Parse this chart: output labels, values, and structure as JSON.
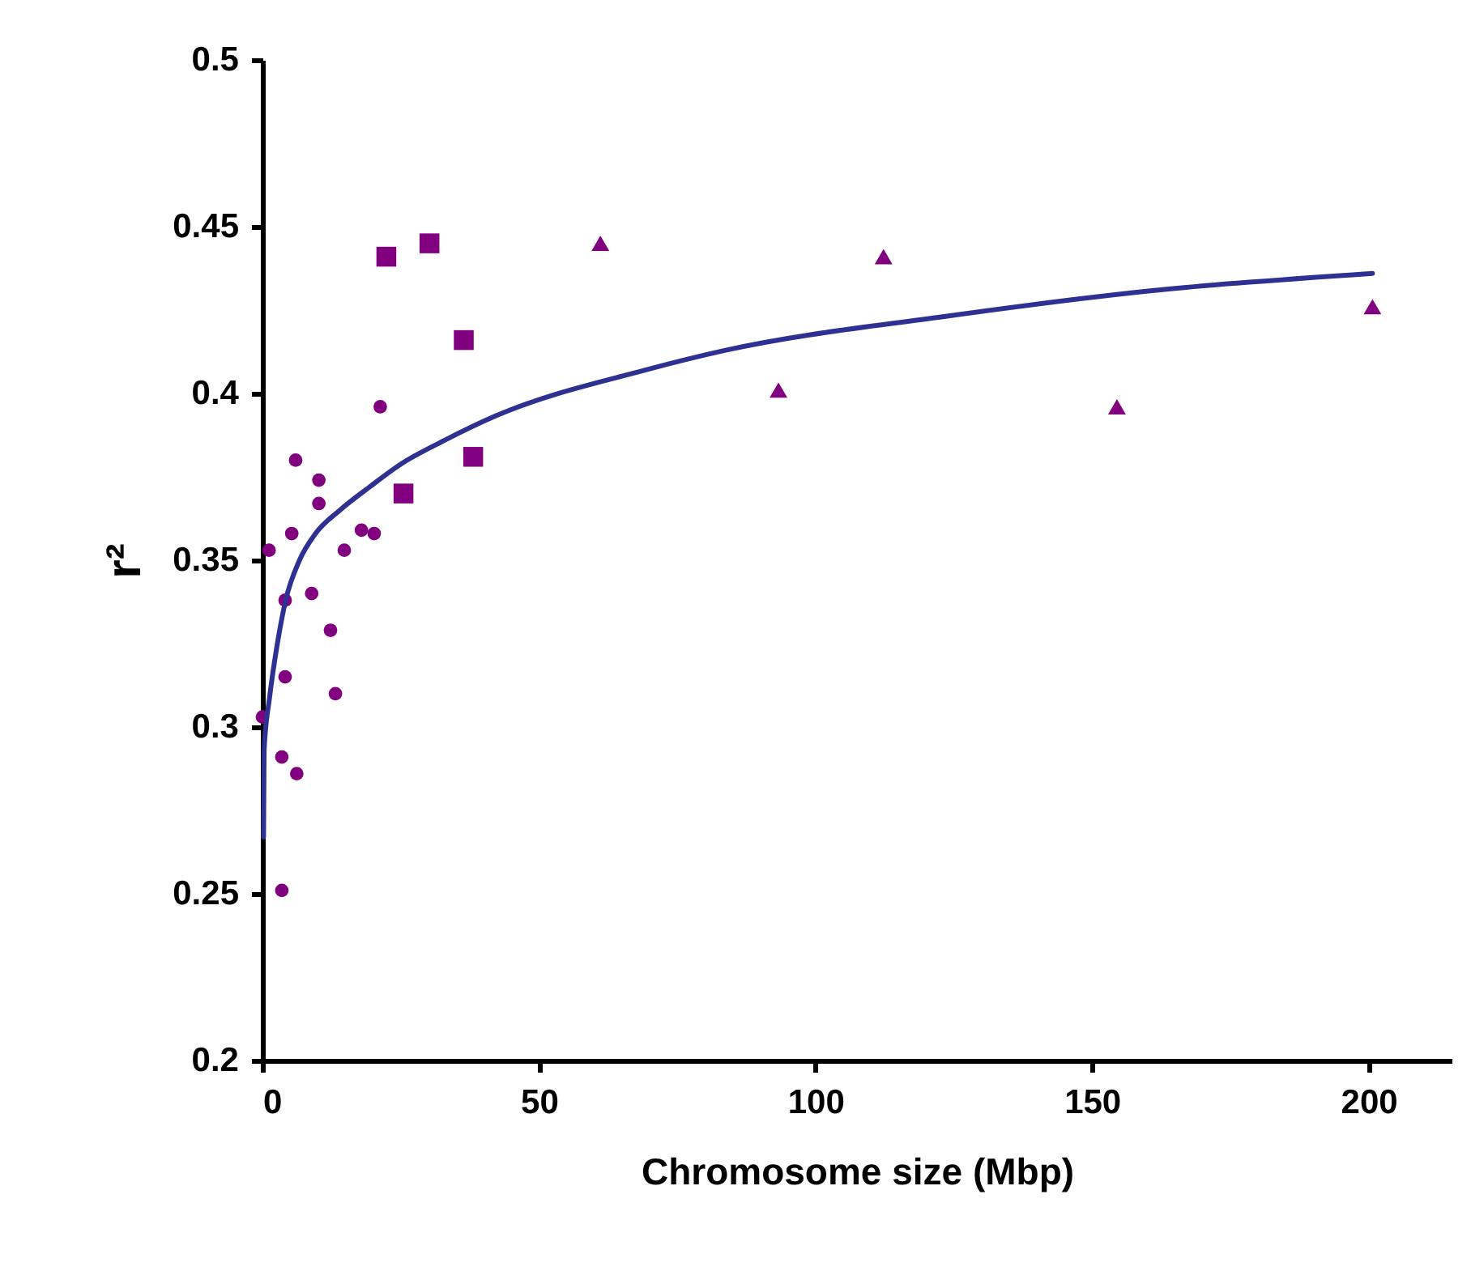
{
  "chart_data": {
    "type": "scatter",
    "xlabel": "Chromosome size (Mbp)",
    "ylabel": "r²",
    "xlim": [
      0,
      215
    ],
    "xticks": [
      0,
      50,
      100,
      150,
      200
    ],
    "ylim": [
      0.2,
      0.5
    ],
    "yticks": [
      0.2,
      0.25,
      0.3,
      0.35,
      0.4,
      0.45,
      0.5
    ],
    "grid": false,
    "series": [
      {
        "marker": "circle",
        "color": "#800080",
        "x": [
          21.3,
          6.0,
          10.2,
          10.2,
          5.3,
          17.9,
          20.2,
          14.8,
          1.2,
          4.1,
          8.9,
          12.3,
          4.1,
          13.2,
          0,
          3.5,
          6.2,
          3.5
        ],
        "values": [
          0.396,
          0.38,
          0.374,
          0.367,
          0.358,
          0.359,
          0.358,
          0.353,
          0.353,
          0.338,
          0.34,
          0.329,
          0.315,
          0.31,
          0.303,
          0.291,
          0.286,
          0.251
        ]
      },
      {
        "marker": "square",
        "color": "#800080",
        "x": [
          22.4,
          30.2,
          36.4,
          38.1,
          25.5
        ],
        "values": [
          0.441,
          0.445,
          0.416,
          0.381,
          0.37
        ]
      },
      {
        "marker": "triangle",
        "color": "#800080",
        "x": [
          61.1,
          112.3,
          93.3,
          154.5,
          200.7
        ],
        "values": [
          0.445,
          0.441,
          0.401,
          0.396,
          0.426
        ]
      },
      {
        "type": "line",
        "marker": "none",
        "color": "#2e3192",
        "x": [
          0.2,
          0.3,
          1.3,
          2.7,
          4.2,
          6.7,
          9.6,
          14.0,
          19.4,
          25.2,
          33.0,
          41.8,
          69.2,
          83.9,
          123,
          162,
          200.7
        ],
        "values": [
          0.267,
          0.293,
          0.309,
          0.325,
          0.338,
          0.35,
          0.358,
          0.365,
          0.372,
          0.379,
          0.386,
          0.393,
          0.407,
          0.413,
          0.423,
          0.431,
          0.436
        ]
      }
    ]
  }
}
